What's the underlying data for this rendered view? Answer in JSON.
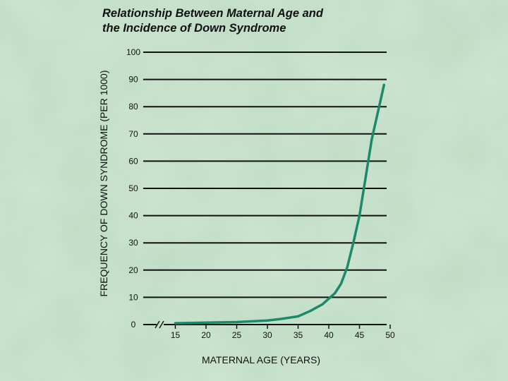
{
  "page": {
    "background_color": "#b9d9c2",
    "line_color": "#1a8a6a",
    "grid_color": "#111111"
  },
  "chart_data": {
    "type": "line",
    "title": "Relationship Between Maternal Age and the Incidence of Down Syndrome",
    "title_lines": [
      "Relationship Between Maternal Age and",
      "the Incidence of Down Syndrome"
    ],
    "xlabel": "MATERNAL AGE (YEARS)",
    "ylabel": "FREQUENCY OF DOWN SYNDROME (PER 1000)",
    "xlim": [
      10,
      50
    ],
    "ylim": [
      0,
      100
    ],
    "x_ticks": [
      15,
      20,
      25,
      30,
      35,
      40,
      45,
      50
    ],
    "y_ticks": [
      0,
      10,
      20,
      30,
      40,
      50,
      60,
      70,
      80,
      90,
      100
    ],
    "x_axis_break": true,
    "grid": true,
    "legend": "none",
    "series": [
      {
        "x": [
          15,
          20,
          25,
          30,
          32,
          35,
          37,
          39,
          41,
          42,
          43,
          44,
          45,
          46,
          47,
          48,
          49
        ],
        "y": [
          0.5,
          0.7,
          0.9,
          1.5,
          2.0,
          3.0,
          5.0,
          7.5,
          11.5,
          15.0,
          21.0,
          30.0,
          40.0,
          54.0,
          68.0,
          78.0,
          88.0
        ]
      }
    ]
  }
}
